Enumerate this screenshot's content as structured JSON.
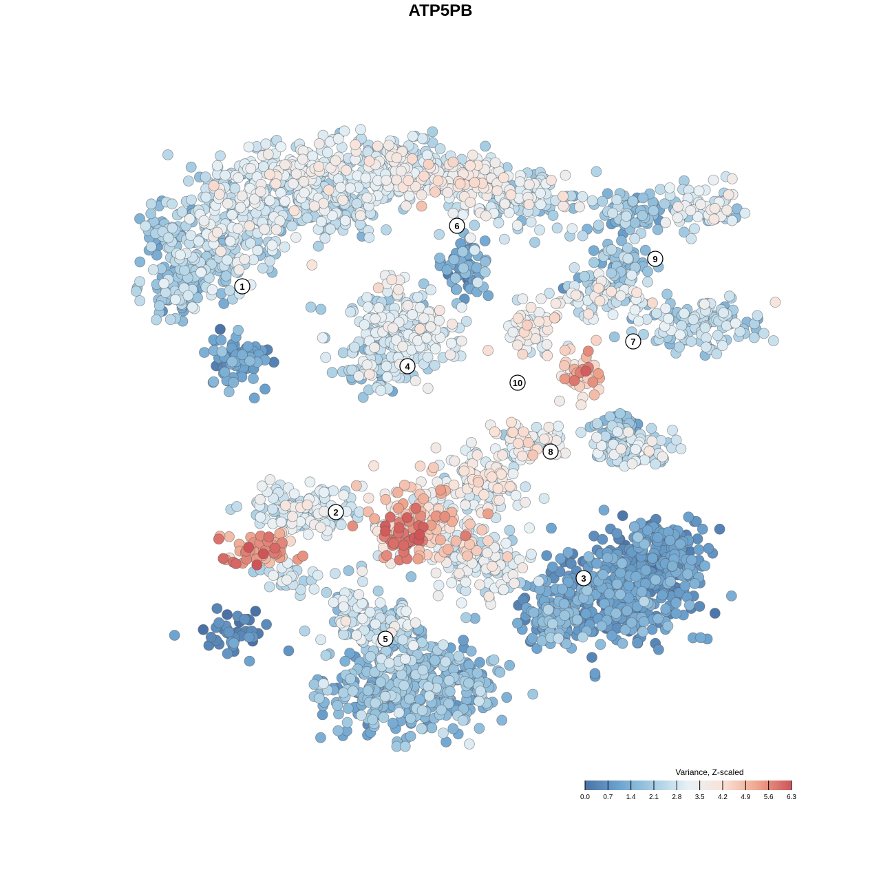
{
  "chart_data": {
    "type": "scatter",
    "title": "ATP5PB",
    "colorbar": {
      "title": "Variance, Z-scaled",
      "ticks": [
        "0.0",
        "0.7",
        "1.4",
        "2.1",
        "2.8",
        "3.5",
        "4.2",
        "4.9",
        "5.6",
        "6.3"
      ],
      "range": [
        0,
        6.3
      ],
      "colors": [
        "#4a72a6",
        "#6da4d0",
        "#a6cde3",
        "#e8f1f6",
        "#f9e2d8",
        "#efa68e",
        "#cf5458"
      ],
      "placement": "bottom-right"
    },
    "clusters": [
      {
        "label": "1",
        "x": -7.2,
        "y": 5.6,
        "mean_value": 2.4
      },
      {
        "label": "2",
        "x": -3.8,
        "y": -2.6,
        "mean_value": 3.3
      },
      {
        "label": "3",
        "x": 5.2,
        "y": -5.0,
        "mean_value": 1.0
      },
      {
        "label": "4",
        "x": -1.2,
        "y": 2.7,
        "mean_value": 2.8
      },
      {
        "label": "5",
        "x": -2.0,
        "y": -7.2,
        "mean_value": 1.6
      },
      {
        "label": "6",
        "x": 0.6,
        "y": 7.8,
        "mean_value": 3.2
      },
      {
        "label": "7",
        "x": 7.0,
        "y": 3.6,
        "mean_value": 2.5
      },
      {
        "label": "8",
        "x": 4.0,
        "y": -0.4,
        "mean_value": 2.9
      },
      {
        "label": "9",
        "x": 7.8,
        "y": 6.6,
        "mean_value": 2.2
      },
      {
        "label": "10",
        "x": 2.8,
        "y": 2.1,
        "mean_value": 3.5
      }
    ],
    "xlim": [
      -16,
      16
    ],
    "ylim": [
      -16,
      16
    ],
    "axes_visible": false,
    "grid": false
  }
}
